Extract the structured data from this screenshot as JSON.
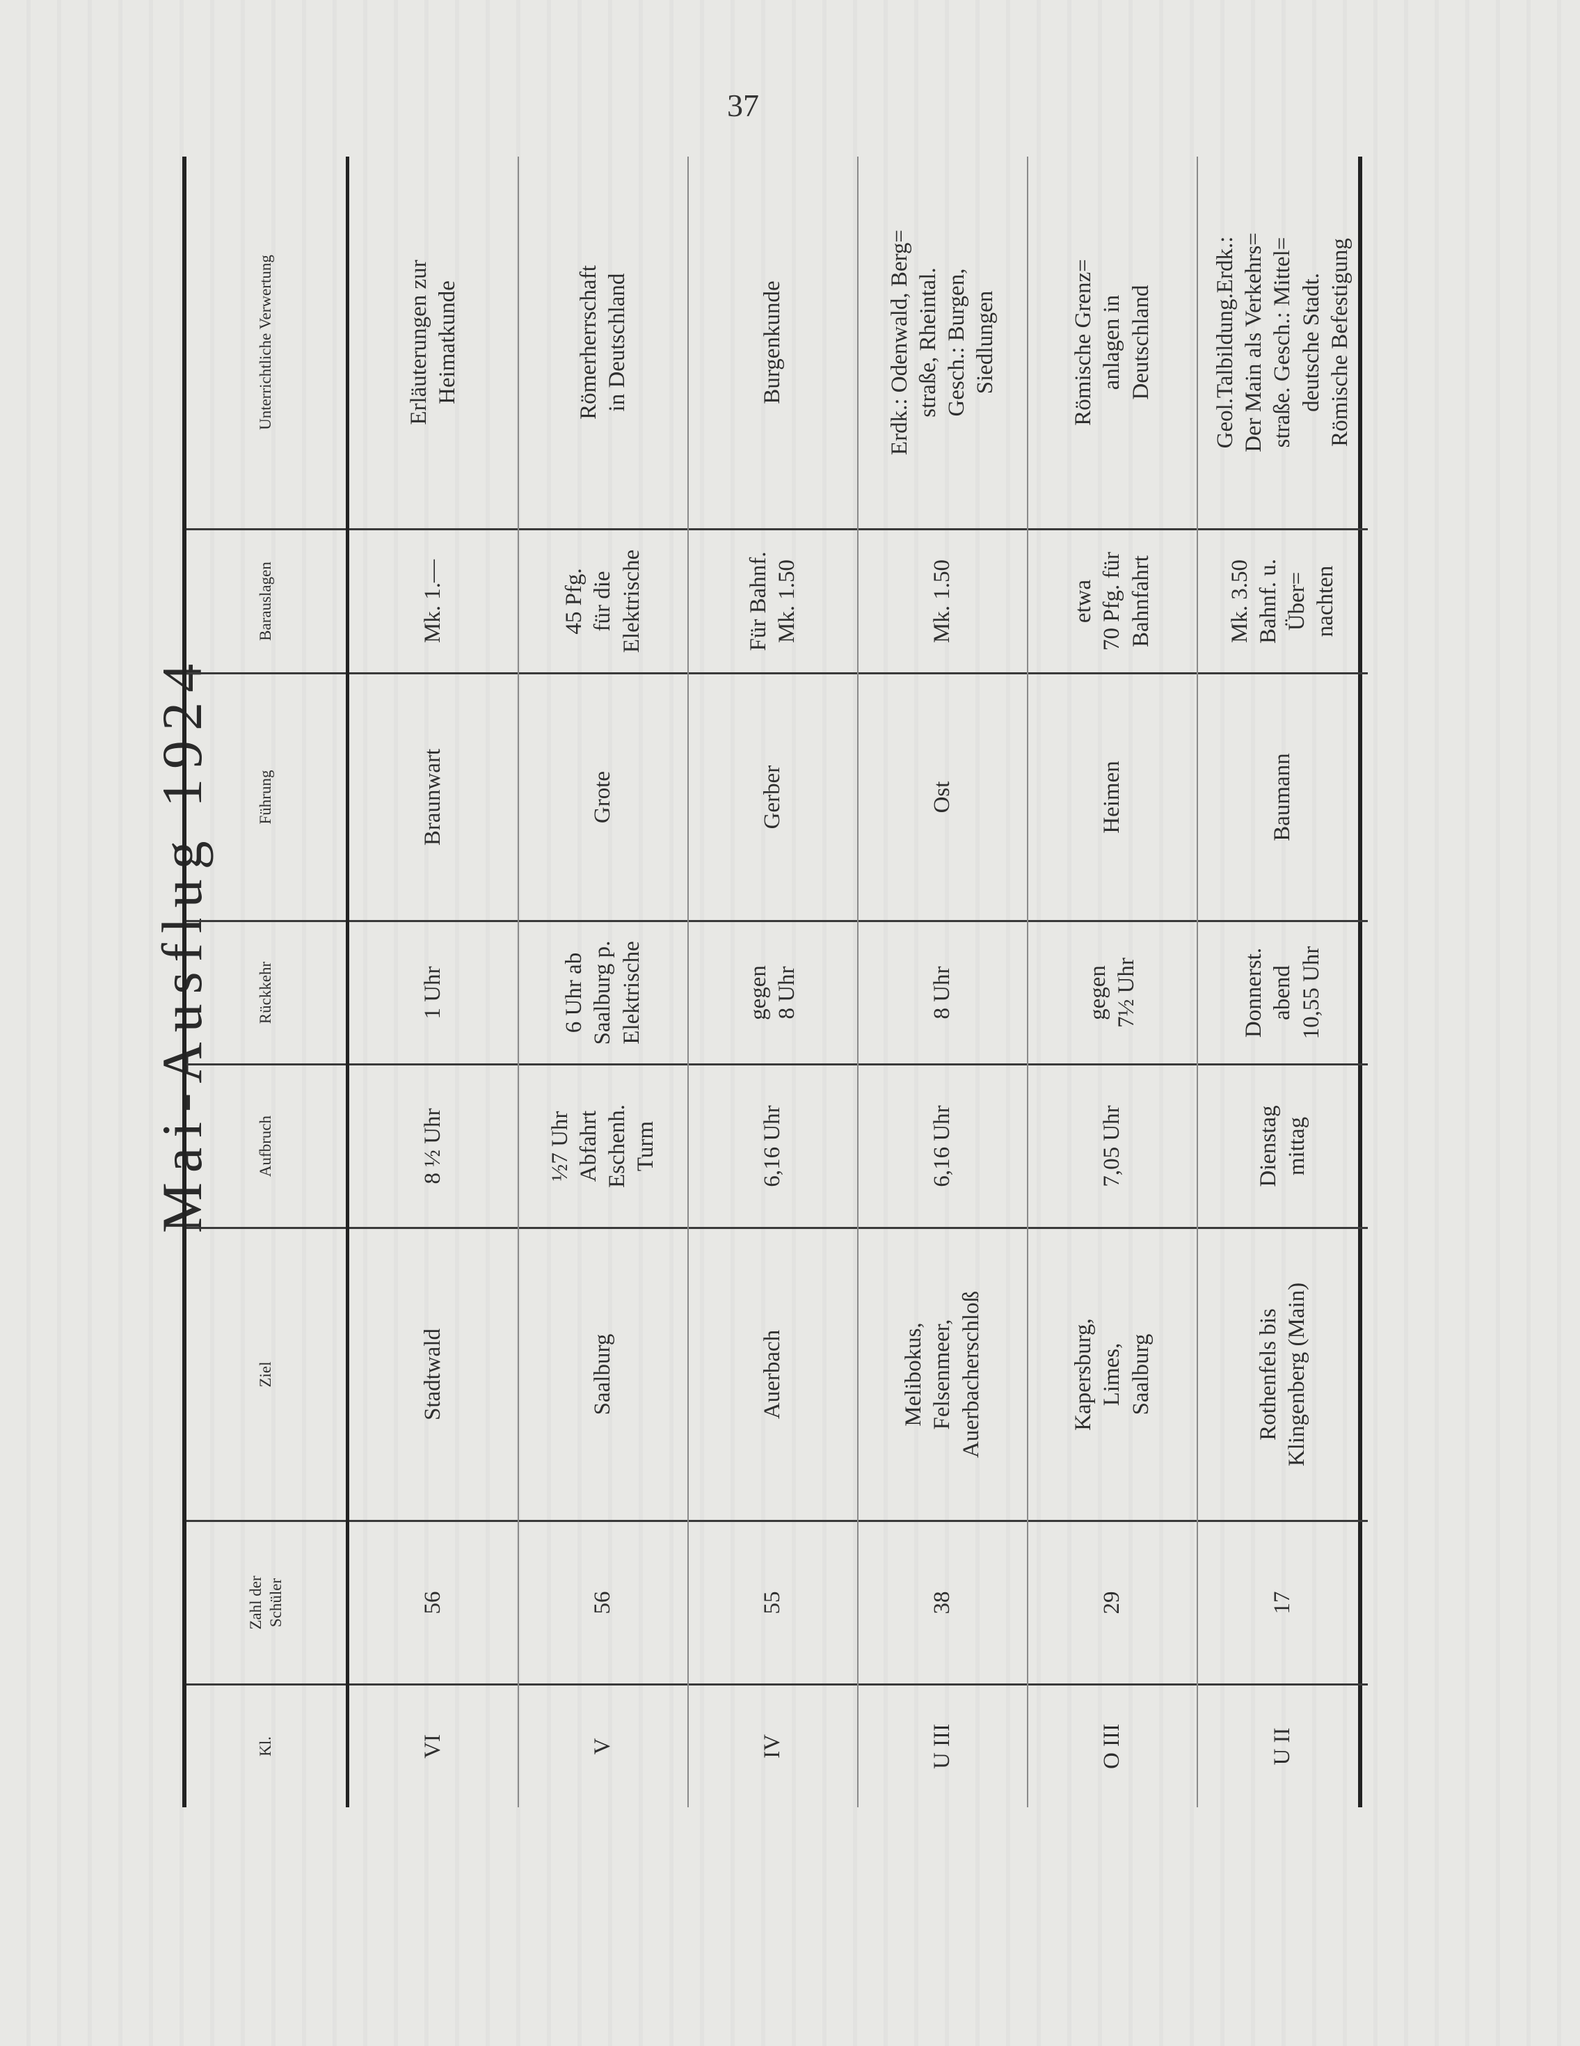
{
  "page_number": "37",
  "title": "Mai-Ausflug 1924",
  "table": {
    "headers": [
      "Kl.",
      "Zahl der\nSchüler",
      "Ziel",
      "Aufbruch",
      "Rückkehr",
      "Führung",
      "Barauslagen",
      "Unterrichtliche Verwertung"
    ],
    "rows": [
      [
        "VI",
        "56",
        "Stadtwald",
        "8 ½ Uhr",
        "1 Uhr",
        "Braunwart",
        "Mk. 1.—",
        "Erläuterungen zur\nHeimatkunde"
      ],
      [
        "V",
        "56",
        "Saalburg",
        "½7 Uhr\nAbfahrt\nEschenh.\nTurm",
        "6 Uhr ab\nSaalburg p.\nElektrische",
        "Grote",
        "45 Pfg.\nfür die\nElektrische",
        "Römerherrschaft\nin Deutschland"
      ],
      [
        "IV",
        "55",
        "Auerbach",
        "6,16 Uhr",
        "gegen\n8 Uhr",
        "Gerber",
        "Für Bahnf.\nMk. 1.50",
        "Burgenkunde"
      ],
      [
        "U III",
        "38",
        "Melibokus,\nFelsenmeer,\nAuerbacherschloß",
        "6,16 Uhr",
        "8 Uhr",
        "Ost",
        "Mk. 1.50",
        "Erdk.: Odenwald, Berg=\nstraße, Rheintal.\nGesch.: Burgen,\nSiedlungen"
      ],
      [
        "O III",
        "29",
        "Kapersburg,\nLimes,\nSaalburg",
        "7,05 Uhr",
        "gegen\n7½ Uhr",
        "Heimen",
        "etwa\n70 Pfg. für\nBahnfahrt",
        "Römische Grenz=\nanlagen in\nDeutschland"
      ],
      [
        "U II",
        "17",
        "Rothenfels bis\nKlingenberg (Main)",
        "Dienstag\nmittag",
        "Donnerst.\nabend\n10,55 Uhr",
        "Baumann",
        "Mk. 3.50\nBahnf. u.\nÜber=\nnachten",
        "Geol.Talbildung.Erdk.:\nDer Main als Verkehrs=\nstraße. Gesch.: Mittel=\ndeutsche Stadt.\nRömische Befestigung"
      ]
    ]
  }
}
